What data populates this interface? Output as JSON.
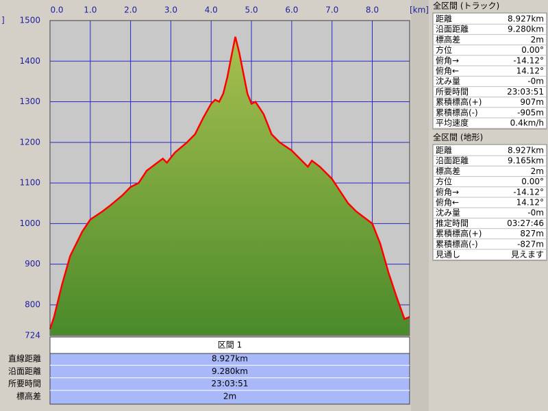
{
  "chart_data": {
    "type": "area",
    "x": [
      0,
      0.1,
      0.3,
      0.5,
      0.8,
      1.0,
      1.3,
      1.5,
      1.8,
      2.0,
      2.2,
      2.4,
      2.6,
      2.8,
      2.9,
      3.1,
      3.4,
      3.6,
      3.8,
      4.0,
      4.1,
      4.2,
      4.3,
      4.4,
      4.5,
      4.6,
      4.7,
      4.8,
      4.9,
      5.0,
      5.1,
      5.3,
      5.5,
      5.7,
      6.0,
      6.2,
      6.4,
      6.5,
      6.7,
      7.0,
      7.2,
      7.4,
      7.6,
      7.8,
      8.0,
      8.2,
      8.4,
      8.6,
      8.8,
      8.927
    ],
    "values": [
      740,
      770,
      850,
      920,
      980,
      1010,
      1030,
      1045,
      1070,
      1090,
      1100,
      1130,
      1145,
      1160,
      1150,
      1175,
      1200,
      1220,
      1260,
      1295,
      1305,
      1300,
      1320,
      1360,
      1410,
      1460,
      1420,
      1370,
      1320,
      1295,
      1300,
      1270,
      1220,
      1200,
      1180,
      1160,
      1140,
      1155,
      1140,
      1110,
      1080,
      1050,
      1030,
      1015,
      1000,
      950,
      880,
      820,
      765,
      770
    ],
    "color": "#ff0000",
    "xlim": [
      0,
      8.927
    ],
    "xticks": [
      {
        "value": 0,
        "label": "0.0"
      },
      {
        "value": 1,
        "label": "1.0"
      },
      {
        "value": 2,
        "label": "2.0"
      },
      {
        "value": 3,
        "label": "3.0"
      },
      {
        "value": 4,
        "label": "4.0"
      },
      {
        "value": 5,
        "label": "5.0"
      },
      {
        "value": 6,
        "label": "6.0"
      },
      {
        "value": 7,
        "label": "7.0"
      },
      {
        "value": 8,
        "label": "8.0"
      }
    ],
    "x_unit": "[km]",
    "y_unit": "]",
    "ylim": [
      724,
      1500
    ],
    "yticks": [
      724,
      800,
      900,
      1000,
      1100,
      1200,
      1300,
      1400,
      1500
    ],
    "grid": true
  },
  "track_panel": {
    "title": "全区間 (トラック)",
    "rows": [
      [
        "距離",
        "8.927km"
      ],
      [
        "沿面距離",
        "9.280km"
      ],
      [
        "標高差",
        "2m"
      ],
      [
        "方位",
        "0.00°"
      ],
      [
        "俯角→",
        "-14.12°"
      ],
      [
        "俯角←",
        "14.12°"
      ],
      [
        "沈み量",
        "-0m"
      ],
      [
        "所要時間",
        "23:03:51"
      ],
      [
        "累積標高(+)",
        "907m"
      ],
      [
        "累積標高(-)",
        "-905m"
      ],
      [
        "平均速度",
        "0.4km/h"
      ]
    ]
  },
  "terrain_panel": {
    "title": "全区間 (地形)",
    "rows": [
      [
        "距離",
        "8.927km"
      ],
      [
        "沿面距離",
        "9.165km"
      ],
      [
        "標高差",
        "2m"
      ],
      [
        "方位",
        "0.00°"
      ],
      [
        "俯角→",
        "-14.12°"
      ],
      [
        "俯角←",
        "14.12°"
      ],
      [
        "沈み量",
        "-0m"
      ],
      [
        "推定時間",
        "03:27:46"
      ],
      [
        "累積標高(+)",
        "827m"
      ],
      [
        "累積標高(-)",
        "-827m"
      ],
      [
        "見通し",
        "見えます"
      ]
    ]
  },
  "section_table": {
    "header": "区間 1",
    "rows": [
      [
        "直線距離",
        "8.927km"
      ],
      [
        "沿面距離",
        "9.280km"
      ],
      [
        "所要時間",
        "23:03:51"
      ],
      [
        "標高差",
        "2m"
      ]
    ]
  }
}
